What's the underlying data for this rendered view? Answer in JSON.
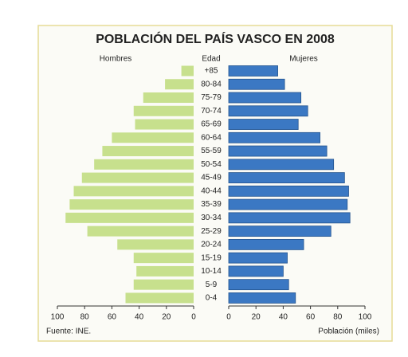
{
  "chart_data": {
    "type": "pyramid",
    "title": "POBLACIÓN DEL PAÍS VASCO EN 2008",
    "category_label": "Edad",
    "categories": [
      "+85",
      "80-84",
      "75-79",
      "70-74",
      "65-69",
      "60-64",
      "55-59",
      "50-54",
      "45-49",
      "40-44",
      "35-39",
      "30-34",
      "25-29",
      "20-24",
      "15-19",
      "10-14",
      "5-9",
      "0-4"
    ],
    "series": [
      {
        "name": "Hombres",
        "color": "#c7e08d",
        "values": [
          9,
          21,
          37,
          44,
          43,
          60,
          67,
          73,
          82,
          88,
          91,
          94,
          78,
          56,
          44,
          42,
          44,
          50
        ]
      },
      {
        "name": "Mujeres",
        "color": "#3b78c3",
        "values": [
          36,
          41,
          53,
          58,
          51,
          67,
          72,
          77,
          85,
          88,
          87,
          89,
          75,
          55,
          43,
          40,
          44,
          49
        ]
      }
    ],
    "xlim": [
      0,
      100
    ],
    "xticks": [
      0,
      20,
      40,
      60,
      80,
      100
    ],
    "xlabel": "Población (miles)",
    "source": "Fuente: INE."
  }
}
